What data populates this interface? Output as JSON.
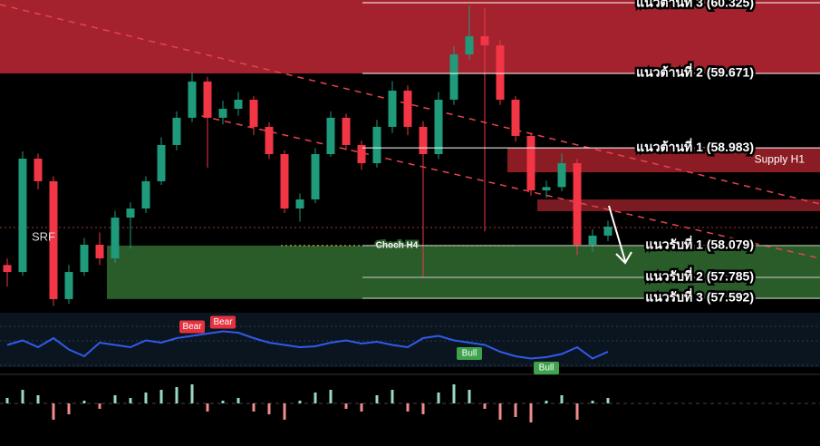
{
  "chart_data": {
    "type": "candlestick",
    "symbol": "SRF",
    "ylim": [
      57.5,
      60.35
    ],
    "open": [
      57.9,
      57.835,
      58.883,
      58.674,
      57.584,
      57.835,
      58.087,
      57.961,
      58.338,
      58.422,
      58.674,
      59.009,
      59.261,
      59.596,
      59.261,
      59.344,
      59.428,
      59.177,
      58.925,
      58.422,
      58.506,
      58.925,
      59.261,
      59.009,
      58.841,
      59.177,
      59.512,
      59.177,
      58.925,
      59.428,
      59.847,
      60.015,
      59.931,
      59.428,
      59.093,
      58.59,
      58.62,
      58.841,
      58.087,
      58.171
    ],
    "high": [
      57.96,
      58.95,
      58.93,
      58.72,
      57.9,
      58.15,
      58.2,
      58.4,
      58.48,
      58.72,
      59.08,
      59.32,
      59.68,
      59.64,
      59.42,
      59.5,
      59.46,
      59.22,
      58.96,
      58.56,
      58.98,
      59.32,
      59.3,
      59.05,
      59.24,
      59.6,
      59.56,
      59.23,
      59.5,
      59.92,
      60.3,
      60.28,
      59.98,
      59.46,
      59.12,
      58.68,
      58.93,
      58.88,
      58.23,
      58.31
    ],
    "low": [
      57.7,
      57.8,
      58.6,
      57.52,
      57.54,
      57.8,
      57.9,
      57.92,
      58.05,
      58.38,
      58.64,
      58.96,
      59.22,
      58.8,
      59.2,
      59.28,
      59.1,
      58.88,
      58.38,
      58.3,
      58.47,
      58.9,
      58.96,
      58.78,
      58.8,
      59.12,
      59.1,
      57.79,
      58.88,
      59.38,
      59.8,
      58.21,
      59.38,
      59.04,
      58.54,
      58.52,
      58.58,
      57.99,
      58.02,
      58.12
    ],
    "close": [
      57.835,
      58.883,
      58.674,
      57.584,
      57.835,
      58.087,
      57.961,
      58.338,
      58.422,
      58.674,
      59.009,
      59.261,
      59.596,
      59.261,
      59.344,
      59.428,
      59.177,
      58.925,
      58.422,
      58.506,
      58.925,
      59.261,
      59.009,
      58.841,
      59.177,
      59.512,
      59.177,
      58.925,
      59.428,
      59.847,
      60.015,
      59.931,
      59.428,
      59.093,
      58.59,
      58.62,
      58.841,
      58.087,
      58.171,
      58.254
    ],
    "up_color": "#1f9a7a",
    "down_color": "#f23645",
    "levels": [
      {
        "label": "แนวต้านที่ 3 (60.325)",
        "value": 60.325
      },
      {
        "label": "แนวต้านที่ 2 (59.671)",
        "value": 59.671
      },
      {
        "label": "แนวต้านที่ 1 (58.983)",
        "value": 58.983
      },
      {
        "label": "แนวรับที่ 1 (58.079)",
        "value": 58.079
      },
      {
        "label": "แนวรับที่ 2 (57.785)",
        "value": 57.785
      },
      {
        "label": "แนวรับที่ 3 (57.592)",
        "value": 57.592
      }
    ],
    "zones": [
      {
        "from": 59.671,
        "to": 60.35,
        "color": "#a3222e"
      },
      {
        "name": "Supply H1",
        "from": 58.757,
        "to": 58.983,
        "color": "#8c1c24"
      },
      {
        "from": 58.397,
        "to": 58.506,
        "color": "#7a1a22"
      },
      {
        "from": 57.585,
        "to": 58.079,
        "color": "#2a5c2a"
      }
    ],
    "choch": {
      "label": "Choch H4",
      "value": 58.079
    },
    "oscillator": {
      "color": "#2f5bea",
      "ylim": [
        0,
        100
      ],
      "values": [
        45,
        55,
        40,
        60,
        35,
        20,
        50,
        45,
        40,
        55,
        50,
        60,
        65,
        70,
        75,
        72,
        60,
        50,
        45,
        40,
        42,
        50,
        55,
        48,
        52,
        45,
        40,
        60,
        65,
        55,
        50,
        45,
        30,
        20,
        15,
        18,
        25,
        40,
        15,
        30
      ],
      "signals": [
        {
          "label": "Bear",
          "index": 12
        },
        {
          "label": "Bear",
          "index": 14
        },
        {
          "label": "Bull",
          "index": 30
        },
        {
          "label": "Bull",
          "index": 35
        }
      ]
    },
    "histogram": {
      "ylim": [
        -1,
        1
      ],
      "values": [
        0.2,
        0.5,
        0.3,
        -0.6,
        -0.4,
        0.1,
        -0.2,
        0.3,
        0.2,
        0.4,
        0.5,
        0.6,
        0.7,
        -0.3,
        0.1,
        0.2,
        -0.3,
        -0.4,
        -0.6,
        0.1,
        0.4,
        0.5,
        -0.2,
        -0.3,
        0.3,
        0.5,
        -0.3,
        -0.4,
        0.4,
        0.7,
        0.5,
        -0.2,
        -0.6,
        -0.5,
        -0.7,
        0.1,
        0.3,
        -0.6,
        0.1,
        0.2
      ]
    }
  }
}
